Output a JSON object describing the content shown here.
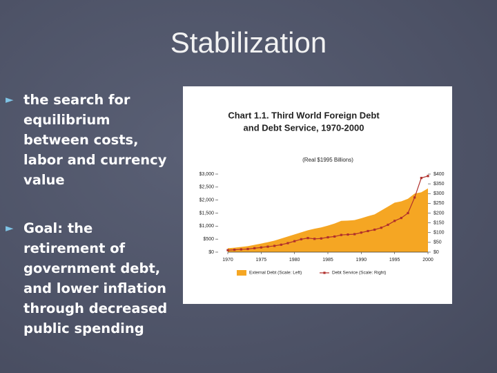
{
  "title": "Stabilization",
  "bullets": [
    "the search for equilibrium between costs, labor and currency value",
    "Goal: the retirement of government debt, and lower inflation through decreased public spending"
  ],
  "chart_data": {
    "type": "area",
    "title": [
      "Chart 1.1. Third World Foreign Debt",
      "and Debt Service, 1970-2000"
    ],
    "subtitle": "(Real $1995 Billions)",
    "x": [
      1970,
      1971,
      1972,
      1973,
      1974,
      1975,
      1976,
      1977,
      1978,
      1979,
      1980,
      1981,
      1982,
      1983,
      1984,
      1985,
      1986,
      1987,
      1988,
      1989,
      1990,
      1991,
      1992,
      1993,
      1994,
      1995,
      1996,
      1997,
      1998,
      1999,
      2000
    ],
    "series": [
      {
        "name": "External Debt (Scale: Left)",
        "color": "#f5a623",
        "values": [
          150,
          170,
          200,
          230,
          280,
          330,
          380,
          440,
          520,
          600,
          680,
          760,
          840,
          900,
          950,
          1020,
          1100,
          1200,
          1210,
          1230,
          1300,
          1380,
          1450,
          1600,
          1750,
          1900,
          1950,
          2050,
          2250,
          2300,
          2450
        ]
      },
      {
        "name": "Debt Service (Scale: Right)",
        "color": "#b0302c",
        "axis": "y2",
        "values": [
          10,
          12,
          14,
          16,
          20,
          24,
          28,
          32,
          38,
          46,
          56,
          66,
          72,
          68,
          70,
          76,
          80,
          88,
          90,
          92,
          100,
          108,
          115,
          125,
          140,
          160,
          175,
          200,
          280,
          380,
          390
        ]
      }
    ],
    "xlim": [
      1970,
      2000
    ],
    "xticks": [
      1970,
      1975,
      1980,
      1985,
      1990,
      1995,
      2000
    ],
    "ylim": [
      0,
      3000
    ],
    "yticks": [
      {
        "value": 0,
        "label": "$0"
      },
      {
        "value": 500,
        "label": "$500"
      },
      {
        "value": 1000,
        "label": "$1,000"
      },
      {
        "value": 1500,
        "label": "$1,500"
      },
      {
        "value": 2000,
        "label": "$2,000"
      },
      {
        "value": 2500,
        "label": "$2,500"
      },
      {
        "value": 3000,
        "label": "$3,000"
      }
    ],
    "y2lim": [
      0,
      400
    ],
    "y2ticks": [
      {
        "value": 0,
        "label": "$0"
      },
      {
        "value": 50,
        "label": "$50"
      },
      {
        "value": 100,
        "label": "$100"
      },
      {
        "value": 150,
        "label": "$150"
      },
      {
        "value": 200,
        "label": "$200"
      },
      {
        "value": 250,
        "label": "$250"
      },
      {
        "value": 300,
        "label": "$300"
      },
      {
        "value": 350,
        "label": "$350"
      },
      {
        "value": 400,
        "label": "$400"
      }
    ]
  }
}
